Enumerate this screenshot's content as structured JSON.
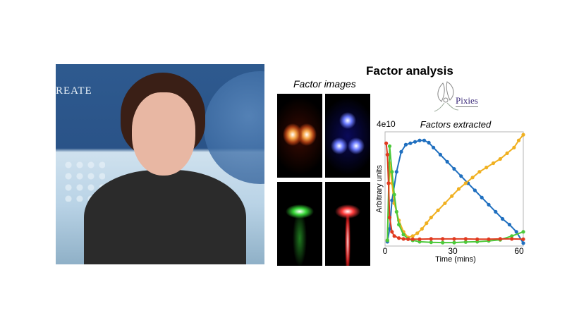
{
  "photo": {
    "banner_text": "REATE"
  },
  "title": "Factor analysis",
  "factor_images_label": "Factor images",
  "logo": {
    "text": "Pixies"
  },
  "chart_data": {
    "type": "line",
    "title": "Factors extracted",
    "xlabel": "Time (mins)",
    "ylabel": "Arbitrary units",
    "xlim": [
      0,
      60
    ],
    "ylim": [
      0,
      4
    ],
    "x_ticks": [
      "0",
      "30",
      "60"
    ],
    "y_ticks": [
      "4e10"
    ],
    "grid": false,
    "series": [
      {
        "color": "#1f6fbf",
        "x": [
          1,
          2,
          3,
          5,
          7,
          9,
          11,
          13,
          15,
          17,
          19,
          21,
          24,
          27,
          30,
          33,
          36,
          39,
          42,
          45,
          48,
          51,
          54,
          57,
          60
        ],
        "y": [
          0.15,
          0.6,
          1.6,
          2.6,
          3.3,
          3.55,
          3.6,
          3.65,
          3.7,
          3.7,
          3.62,
          3.45,
          3.2,
          2.95,
          2.7,
          2.45,
          2.2,
          1.95,
          1.7,
          1.45,
          1.2,
          0.95,
          0.75,
          0.5,
          0.1
        ]
      },
      {
        "color": "#f0b020",
        "x": [
          1,
          2,
          3,
          4,
          6,
          8,
          10,
          12,
          14,
          16,
          18,
          20,
          23,
          26,
          29,
          32,
          35,
          38,
          41,
          44,
          47,
          50,
          53,
          56,
          58,
          60
        ],
        "y": [
          0.2,
          2.9,
          2.2,
          1.5,
          0.9,
          0.5,
          0.3,
          0.35,
          0.45,
          0.6,
          0.8,
          1.0,
          1.25,
          1.5,
          1.75,
          2.0,
          2.2,
          2.4,
          2.6,
          2.75,
          2.9,
          3.05,
          3.25,
          3.45,
          3.7,
          3.9
        ]
      },
      {
        "color": "#4cc93a",
        "x": [
          1,
          2,
          3,
          4,
          5,
          6,
          8,
          10,
          12,
          15,
          20,
          25,
          30,
          35,
          40,
          45,
          50,
          55,
          60
        ],
        "y": [
          0.2,
          3.5,
          2.6,
          1.8,
          1.2,
          0.75,
          0.4,
          0.25,
          0.2,
          0.15,
          0.13,
          0.12,
          0.12,
          0.14,
          0.15,
          0.18,
          0.22,
          0.35,
          0.5
        ]
      },
      {
        "color": "#e03a1f",
        "x": [
          0.5,
          1,
          1.5,
          2,
          3,
          4,
          6,
          8,
          10,
          12,
          15,
          20,
          25,
          30,
          35,
          40,
          45,
          50,
          55,
          60
        ],
        "y": [
          3.6,
          3.2,
          2.2,
          1.0,
          0.5,
          0.35,
          0.28,
          0.25,
          0.24,
          0.24,
          0.24,
          0.25,
          0.25,
          0.25,
          0.25,
          0.24,
          0.24,
          0.25,
          0.25,
          0.24
        ]
      }
    ]
  }
}
